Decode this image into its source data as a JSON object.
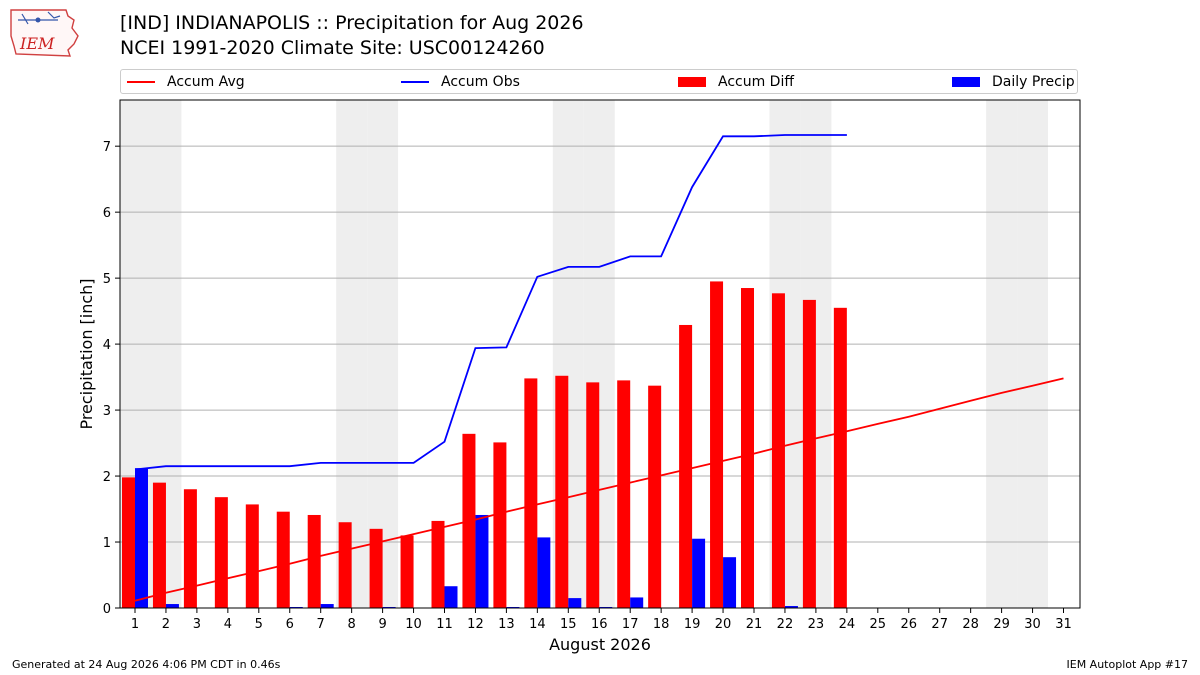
{
  "logo": {
    "text": "IEM"
  },
  "title": {
    "line1": "[IND] INDIANAPOLIS :: Precipitation for Aug 2026",
    "line2": "NCEI 1991-2020 Climate Site: USC00124260"
  },
  "legend": {
    "items": [
      {
        "label": "Accum Avg",
        "kind": "line",
        "color": "#ff0000"
      },
      {
        "label": "Accum Obs",
        "kind": "line",
        "color": "#0000ff"
      },
      {
        "label": "Accum Diff",
        "kind": "bar",
        "color": "#ff0000"
      },
      {
        "label": "Daily Precip",
        "kind": "bar",
        "color": "#0000ff"
      }
    ]
  },
  "footer": {
    "left": "Generated at 24 Aug 2026 4:06 PM CDT in 0.46s",
    "right": "IEM Autoplot App #17"
  },
  "colors": {
    "avg": "#ff0000",
    "obs": "#0000ff",
    "diff": "#ff0000",
    "daily": "#0000ff",
    "weekend": "#eeeeee",
    "grid": "#b0b0b0"
  },
  "chart_data": {
    "type": "bar",
    "xlabel": "August 2026",
    "ylabel": "Precipitation [inch]",
    "ylim": [
      0,
      7.7
    ],
    "yticks": [
      0,
      1,
      2,
      3,
      4,
      5,
      6,
      7
    ],
    "days": [
      1,
      2,
      3,
      4,
      5,
      6,
      7,
      8,
      9,
      10,
      11,
      12,
      13,
      14,
      15,
      16,
      17,
      18,
      19,
      20,
      21,
      22,
      23,
      24,
      25,
      26,
      27,
      28,
      29,
      30,
      31
    ],
    "weekend_days": [
      1,
      2,
      8,
      9,
      15,
      16,
      22,
      23,
      29,
      30
    ],
    "grid": "horizontal",
    "series": [
      {
        "name": "Accum Avg",
        "kind": "line",
        "values": [
          0.11,
          0.23,
          0.34,
          0.45,
          0.56,
          0.67,
          0.79,
          0.9,
          1.01,
          1.12,
          1.23,
          1.34,
          1.46,
          1.57,
          1.68,
          1.79,
          1.9,
          2.01,
          2.12,
          2.23,
          2.34,
          2.46,
          2.57,
          2.68,
          2.79,
          2.9,
          3.02,
          3.14,
          3.26,
          3.37,
          3.48
        ]
      },
      {
        "name": "Accum Obs",
        "kind": "line",
        "values": [
          2.1,
          2.15,
          2.15,
          2.15,
          2.15,
          2.15,
          2.2,
          2.2,
          2.2,
          2.2,
          2.52,
          3.94,
          3.95,
          5.02,
          5.17,
          5.17,
          5.33,
          5.33,
          6.38,
          7.15,
          7.15,
          7.17,
          7.17,
          7.17
        ]
      },
      {
        "name": "Accum Diff",
        "kind": "bar",
        "values": [
          1.98,
          1.9,
          1.8,
          1.68,
          1.57,
          1.46,
          1.41,
          1.3,
          1.2,
          1.1,
          1.32,
          2.64,
          2.51,
          3.48,
          3.52,
          3.42,
          3.45,
          3.37,
          4.29,
          4.95,
          4.85,
          4.77,
          4.67,
          4.55
        ]
      },
      {
        "name": "Daily Precip",
        "kind": "bar",
        "values": [
          2.12,
          0.06,
          0.0,
          0.0,
          0.0,
          0.01,
          0.06,
          0.0,
          0.01,
          0.0,
          0.33,
          1.41,
          0.01,
          1.07,
          0.15,
          0.01,
          0.16,
          0.0,
          1.05,
          0.77,
          0.0,
          0.03,
          0.0,
          0.0
        ]
      }
    ]
  }
}
